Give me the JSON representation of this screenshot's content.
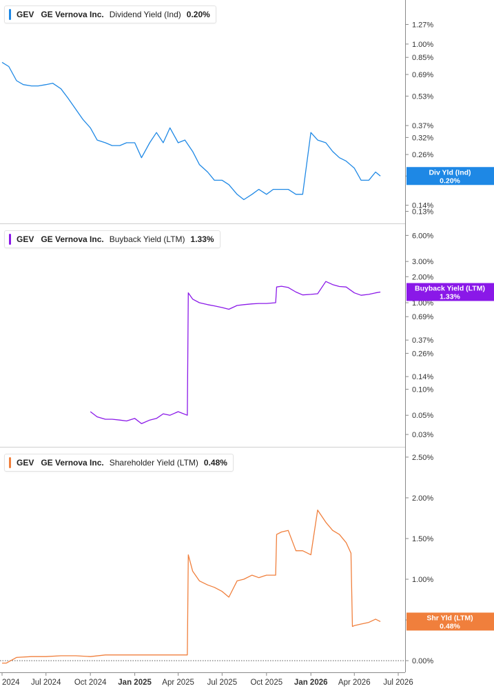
{
  "panels": [
    {
      "ticker": "GEV",
      "company": "GE Vernova Inc.",
      "metric": "Dividend Yield (Ind)",
      "value": "0.20%",
      "tag_line1": "Div Yld (Ind)",
      "tag_line2": "0.20%",
      "color": "#1e88e5"
    },
    {
      "ticker": "GEV",
      "company": "GE Vernova Inc.",
      "metric": "Buyback Yield (LTM)",
      "value": "1.33%",
      "tag_line1": "Buyback Yield (LTM)",
      "tag_line2": "1.33%",
      "color": "#8a18e8"
    },
    {
      "ticker": "GEV",
      "company": "GE Vernova Inc.",
      "metric": "Shareholder Yield (LTM)",
      "value": "0.48%",
      "tag_line1": "Shr Yld (LTM)",
      "tag_line2": "0.48%",
      "color": "#f07f3c"
    }
  ],
  "chart_data": [
    {
      "type": "line",
      "title": "GEV GE Vernova Inc. Dividend Yield (Ind) 0.20%",
      "y_scale": "log",
      "ylim": [
        0.12,
        1.6
      ],
      "ytick_labels": [
        "1.27%",
        "1.00%",
        "0.85%",
        "0.69%",
        "0.53%",
        "0.37%",
        "0.32%",
        "0.26%",
        "0.20%",
        "0.14%",
        "0.13%"
      ],
      "ytick_values": [
        1.27,
        1.0,
        0.85,
        0.69,
        0.53,
        0.37,
        0.32,
        0.26,
        0.2,
        0.14,
        0.13
      ],
      "series": [
        {
          "x": [
            "2024-04-01",
            "2024-04-15",
            "2024-05-01",
            "2024-05-15",
            "2024-06-01",
            "2024-06-15",
            "2024-07-01",
            "2024-07-15",
            "2024-08-01",
            "2024-08-15",
            "2024-09-01",
            "2024-09-15",
            "2024-10-01",
            "2024-10-15",
            "2024-11-01",
            "2024-11-15",
            "2024-12-01",
            "2024-12-15",
            "2025-01-01",
            "2025-01-15",
            "2025-02-01",
            "2025-02-15",
            "2025-03-01",
            "2025-03-15",
            "2025-04-01",
            "2025-04-15",
            "2025-05-01",
            "2025-05-15",
            "2025-06-01",
            "2025-06-15",
            "2025-07-01",
            "2025-07-15",
            "2025-08-01",
            "2025-08-15",
            "2025-09-01",
            "2025-09-15",
            "2025-10-01",
            "2025-10-15",
            "2025-11-01",
            "2025-11-15",
            "2025-12-01",
            "2025-12-15",
            "2026-01-01",
            "2026-01-15",
            "2026-02-01",
            "2026-02-15",
            "2026-03-01",
            "2026-03-15",
            "2026-04-01",
            "2026-04-15",
            "2026-05-01",
            "2026-05-15",
            "2026-05-25"
          ],
          "values": [
            0.8,
            0.76,
            0.64,
            0.61,
            0.6,
            0.6,
            0.61,
            0.62,
            0.58,
            0.52,
            0.45,
            0.4,
            0.36,
            0.31,
            0.3,
            0.29,
            0.29,
            0.3,
            0.3,
            0.25,
            0.3,
            0.34,
            0.3,
            0.36,
            0.3,
            0.31,
            0.27,
            0.23,
            0.21,
            0.19,
            0.19,
            0.18,
            0.16,
            0.15,
            0.16,
            0.17,
            0.16,
            0.17,
            0.17,
            0.17,
            0.16,
            0.16,
            0.34,
            0.31,
            0.3,
            0.27,
            0.25,
            0.24,
            0.22,
            0.19,
            0.19,
            0.21,
            0.2
          ]
        }
      ]
    },
    {
      "type": "line",
      "title": "GEV GE Vernova Inc. Buyback Yield (LTM) 1.33%",
      "y_scale": "log",
      "ylim": [
        0.025,
        7.0
      ],
      "ytick_labels": [
        "6.00%",
        "3.00%",
        "2.00%",
        "1.00%",
        "0.69%",
        "0.37%",
        "0.26%",
        "0.14%",
        "0.10%",
        "0.05%",
        "0.03%"
      ],
      "ytick_values": [
        6.0,
        3.0,
        2.0,
        1.0,
        0.69,
        0.37,
        0.26,
        0.14,
        0.1,
        0.05,
        0.03
      ],
      "series": [
        {
          "x": [
            "2024-10-01",
            "2024-10-15",
            "2024-11-01",
            "2024-11-15",
            "2024-12-01",
            "2024-12-15",
            "2025-01-01",
            "2025-01-15",
            "2025-02-01",
            "2025-02-15",
            "2025-03-01",
            "2025-03-15",
            "2025-04-01",
            "2025-04-20",
            "2025-04-22",
            "2025-05-01",
            "2025-05-15",
            "2025-06-01",
            "2025-06-15",
            "2025-07-01",
            "2025-07-15",
            "2025-08-01",
            "2025-08-15",
            "2025-09-01",
            "2025-09-15",
            "2025-10-01",
            "2025-10-20",
            "2025-10-22",
            "2025-11-01",
            "2025-11-15",
            "2025-12-01",
            "2025-12-15",
            "2026-01-01",
            "2026-01-15",
            "2026-02-01",
            "2026-02-15",
            "2026-03-01",
            "2026-03-15",
            "2026-04-01",
            "2026-04-15",
            "2026-05-01",
            "2026-05-15",
            "2026-05-25"
          ],
          "values": [
            0.055,
            0.048,
            0.045,
            0.045,
            0.044,
            0.043,
            0.046,
            0.04,
            0.044,
            0.046,
            0.052,
            0.05,
            0.055,
            0.05,
            1.3,
            1.1,
            1.0,
            0.95,
            0.92,
            0.88,
            0.84,
            0.93,
            0.95,
            0.97,
            0.98,
            0.98,
            1.0,
            1.52,
            1.55,
            1.5,
            1.33,
            1.23,
            1.25,
            1.27,
            1.76,
            1.62,
            1.54,
            1.52,
            1.3,
            1.22,
            1.25,
            1.3,
            1.33
          ]
        }
      ]
    },
    {
      "type": "line",
      "title": "GEV GE Vernova Inc. Shareholder Yield (LTM) 0.48%",
      "ylim": [
        -0.05,
        2.55
      ],
      "ytick_labels": [
        "2.50%",
        "2.00%",
        "1.50%",
        "1.00%",
        "0.50%",
        "0.00%"
      ],
      "ytick_values": [
        2.5,
        2.0,
        1.5,
        1.0,
        0.5,
        0.0
      ],
      "series": [
        {
          "x": [
            "2024-04-01",
            "2024-04-10",
            "2024-05-01",
            "2024-06-01",
            "2024-07-01",
            "2024-08-01",
            "2024-09-01",
            "2024-10-01",
            "2024-11-01",
            "2024-12-01",
            "2025-01-01",
            "2025-02-01",
            "2025-03-01",
            "2025-04-01",
            "2025-04-20",
            "2025-04-22",
            "2025-05-01",
            "2025-05-15",
            "2025-06-01",
            "2025-06-15",
            "2025-07-01",
            "2025-07-15",
            "2025-08-01",
            "2025-08-15",
            "2025-09-01",
            "2025-09-15",
            "2025-10-01",
            "2025-10-20",
            "2025-10-22",
            "2025-11-01",
            "2025-11-15",
            "2025-12-01",
            "2025-12-15",
            "2026-01-01",
            "2026-01-15",
            "2026-02-01",
            "2026-02-15",
            "2026-03-01",
            "2026-03-15",
            "2026-03-25",
            "2026-03-28",
            "2026-04-01",
            "2026-04-15",
            "2026-05-01",
            "2026-05-15",
            "2026-05-25"
          ],
          "values": [
            -0.03,
            -0.03,
            0.04,
            0.05,
            0.05,
            0.06,
            0.06,
            0.05,
            0.07,
            0.07,
            0.07,
            0.07,
            0.07,
            0.07,
            0.07,
            1.3,
            1.1,
            0.98,
            0.93,
            0.9,
            0.85,
            0.78,
            0.98,
            1.0,
            1.05,
            1.02,
            1.05,
            1.05,
            1.55,
            1.58,
            1.6,
            1.35,
            1.35,
            1.3,
            1.85,
            1.7,
            1.6,
            1.55,
            1.45,
            1.32,
            0.42,
            0.43,
            0.45,
            0.47,
            0.51,
            0.48
          ]
        }
      ]
    }
  ],
  "x_axis": {
    "labels": [
      "2024",
      "Jul 2024",
      "Oct 2024",
      "Jan 2025",
      "Apr 2025",
      "Jul 2025",
      "Oct 2025",
      "Jan 2026",
      "Apr 2026",
      "Jul 2026"
    ],
    "dates": [
      "2024-04-01",
      "2024-07-01",
      "2024-10-01",
      "2025-01-01",
      "2025-04-01",
      "2025-07-01",
      "2025-10-01",
      "2026-01-01",
      "2026-04-01",
      "2026-07-01"
    ],
    "bold": [
      false,
      false,
      false,
      true,
      false,
      false,
      false,
      true,
      false,
      false
    ]
  }
}
